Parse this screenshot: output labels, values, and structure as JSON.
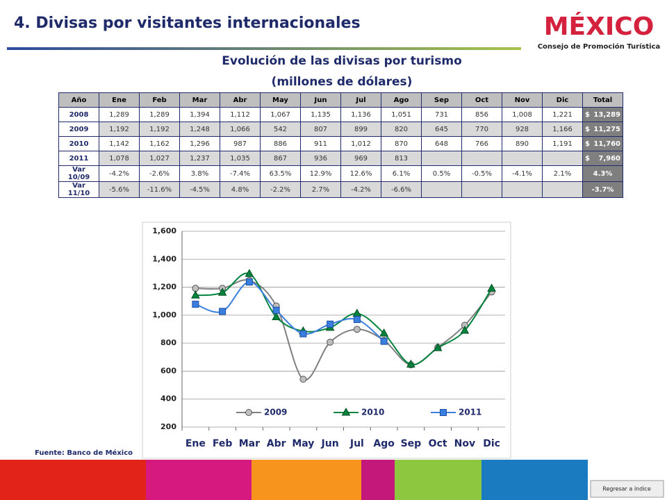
{
  "header": {
    "title": "4. Divisas por visitantes internacionales",
    "logo": "MÉXICO",
    "logo_subtitle": "Consejo de Promoción Turística"
  },
  "table": {
    "title": "Evolución de las divisas por turismo",
    "subtitle": "(millones de dólares)",
    "currency": "$",
    "columns": [
      "Año",
      "Ene",
      "Feb",
      "Mar",
      "Abr",
      "May",
      "Jun",
      "Jul",
      "Ago",
      "Sep",
      "Oct",
      "Nov",
      "Dic",
      "Total"
    ],
    "rows": [
      {
        "label": "2008",
        "cells": [
          "1,289",
          "1,289",
          "1,394",
          "1,112",
          "1,067",
          "1,135",
          "1,136",
          "1,051",
          "731",
          "856",
          "1,008",
          "1,221"
        ],
        "total": "13,289"
      },
      {
        "label": "2009",
        "cells": [
          "1,192",
          "1,192",
          "1,248",
          "1,066",
          "542",
          "807",
          "899",
          "820",
          "645",
          "770",
          "928",
          "1,166"
        ],
        "total": "11,275"
      },
      {
        "label": "2010",
        "cells": [
          "1,142",
          "1,162",
          "1,296",
          "987",
          "886",
          "911",
          "1,012",
          "870",
          "648",
          "766",
          "890",
          "1,191"
        ],
        "total": "11,760"
      },
      {
        "label": "2011",
        "cells": [
          "1,078",
          "1,027",
          "1,237",
          "1,035",
          "867",
          "936",
          "969",
          "813"
        ],
        "total": "7,960"
      },
      {
        "label": "Var 10/09",
        "cells": [
          "-4.2%",
          "-2.6%",
          "3.8%",
          "-7.4%",
          "63.5%",
          "12.9%",
          "12.6%",
          "6.1%",
          "0.5%",
          "-0.5%",
          "-4.1%",
          "2.1%"
        ],
        "total": "4.3%"
      },
      {
        "label": "Var 11/10",
        "cells": [
          "-5.6%",
          "-11.6%",
          "-4.5%",
          "4.8%",
          "-2.2%",
          "2.7%",
          "-4.2%",
          "-6.6%"
        ],
        "total": "-3.7%"
      }
    ]
  },
  "chart_data": {
    "type": "line",
    "categories": [
      "Ene",
      "Feb",
      "Mar",
      "Abr",
      "May",
      "Jun",
      "Jul",
      "Ago",
      "Sep",
      "Oct",
      "Nov",
      "Dic"
    ],
    "series": [
      {
        "name": "2009",
        "color": "#7f7f7f",
        "marker": "circle",
        "values": [
          1192,
          1192,
          1248,
          1066,
          542,
          807,
          899,
          820,
          645,
          770,
          928,
          1166
        ]
      },
      {
        "name": "2010",
        "color": "#00843d",
        "marker": "triangle",
        "values": [
          1142,
          1162,
          1296,
          987,
          886,
          911,
          1012,
          870,
          648,
          766,
          890,
          1191
        ]
      },
      {
        "name": "2011",
        "color": "#3a7fe0",
        "marker": "square",
        "values": [
          1078,
          1027,
          1237,
          1035,
          867,
          936,
          969,
          813,
          null,
          null,
          null,
          null
        ]
      }
    ],
    "ylim": [
      200,
      1600
    ],
    "yticks": [
      200,
      400,
      600,
      800,
      {
        "value": 1000,
        "label": "1,000"
      },
      {
        "value": 1200,
        "label": "1,200"
      },
      {
        "value": 1400,
        "label": "1,400"
      },
      {
        "value": 1600,
        "label": "1,600"
      }
    ],
    "grid": true
  },
  "source": "Fuente: Banco de México",
  "button": "Regresar a índice"
}
